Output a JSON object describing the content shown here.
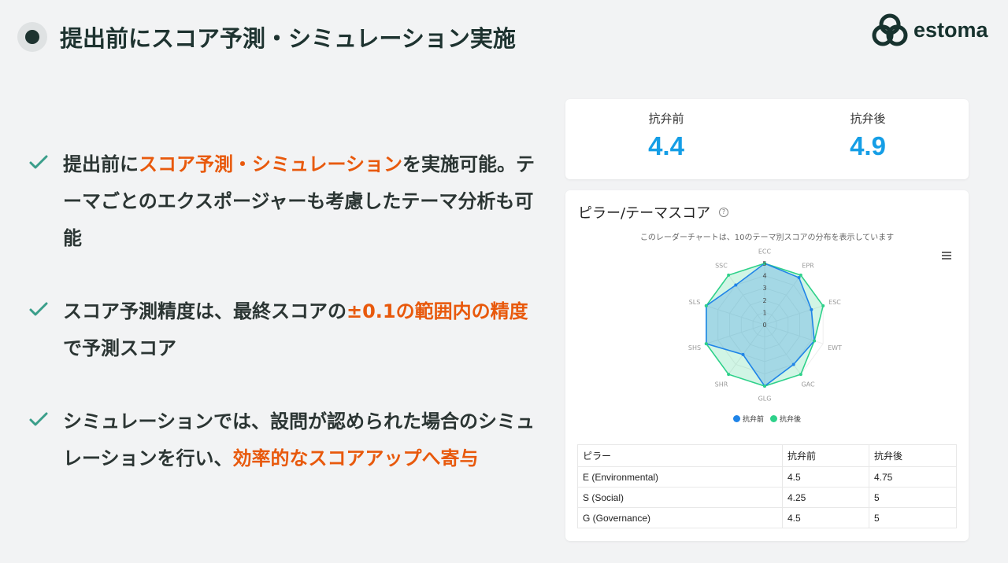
{
  "header": {
    "title": "提出前にスコア予測・シミュレーション実施",
    "logo_text": "estoma",
    "logo_mark": "®"
  },
  "bullets": [
    {
      "segments": [
        {
          "t": "提出前に",
          "hl": false
        },
        {
          "t": "スコア予測・シミュレーション",
          "hl": true
        },
        {
          "t": "を実施可能。テーマごとのエクスポージャーも考慮したテーマ分析も可能",
          "hl": false
        }
      ]
    },
    {
      "segments": [
        {
          "t": "スコア予測精度は、最終スコアの",
          "hl": false
        },
        {
          "t": "±0.1の範囲内の精度",
          "hl": true
        },
        {
          "t": "で予測スコア",
          "hl": false
        }
      ]
    },
    {
      "segments": [
        {
          "t": "シミュレーションでは、設問が認められた場合のシミュレーションを行い、",
          "hl": false
        },
        {
          "t": "効率的なスコアアップへ寄与",
          "hl": true
        }
      ]
    }
  ],
  "scores": [
    {
      "label": "抗弁前",
      "value": "4.4"
    },
    {
      "label": "抗弁後",
      "value": "4.9"
    }
  ],
  "chart_card": {
    "title": "ピラー/テーマスコア",
    "help_icon": "question-circle-icon",
    "subtitle": "このレーダーチャートは、10のテーマ別スコアの分布を表示しています",
    "menu_icon": "hamburger-menu-icon"
  },
  "chart_data": {
    "type": "radar",
    "categories": [
      "ECC",
      "EPR",
      "ESC",
      "EWT",
      "GAC",
      "GLG",
      "SHR",
      "SHS",
      "SLS",
      "SSC"
    ],
    "rlim": [
      0,
      5
    ],
    "ticks": [
      "0",
      "1",
      "2",
      "3",
      "4",
      "5"
    ],
    "series": [
      {
        "name": "抗弁前",
        "color": "#1f84e8",
        "values": [
          5,
          4.75,
          4,
          4.25,
          4,
          5,
          3,
          5,
          5,
          4
        ]
      },
      {
        "name": "抗弁後",
        "color": "#2ed18a",
        "values": [
          5,
          5,
          5,
          4.25,
          5,
          5,
          5,
          5,
          5,
          5
        ]
      }
    ],
    "legend": "bottom"
  },
  "table": {
    "headers": [
      "ピラー",
      "抗弁前",
      "抗弁後"
    ],
    "rows": [
      [
        "E (Environmental)",
        "4.5",
        "4.75"
      ],
      [
        "S (Social)",
        "4.25",
        "5"
      ],
      [
        "G (Governance)",
        "4.5",
        "5"
      ]
    ]
  },
  "colors": {
    "accent": "#e8590c",
    "score": "#159ee6",
    "check": "#3a9e8a"
  }
}
